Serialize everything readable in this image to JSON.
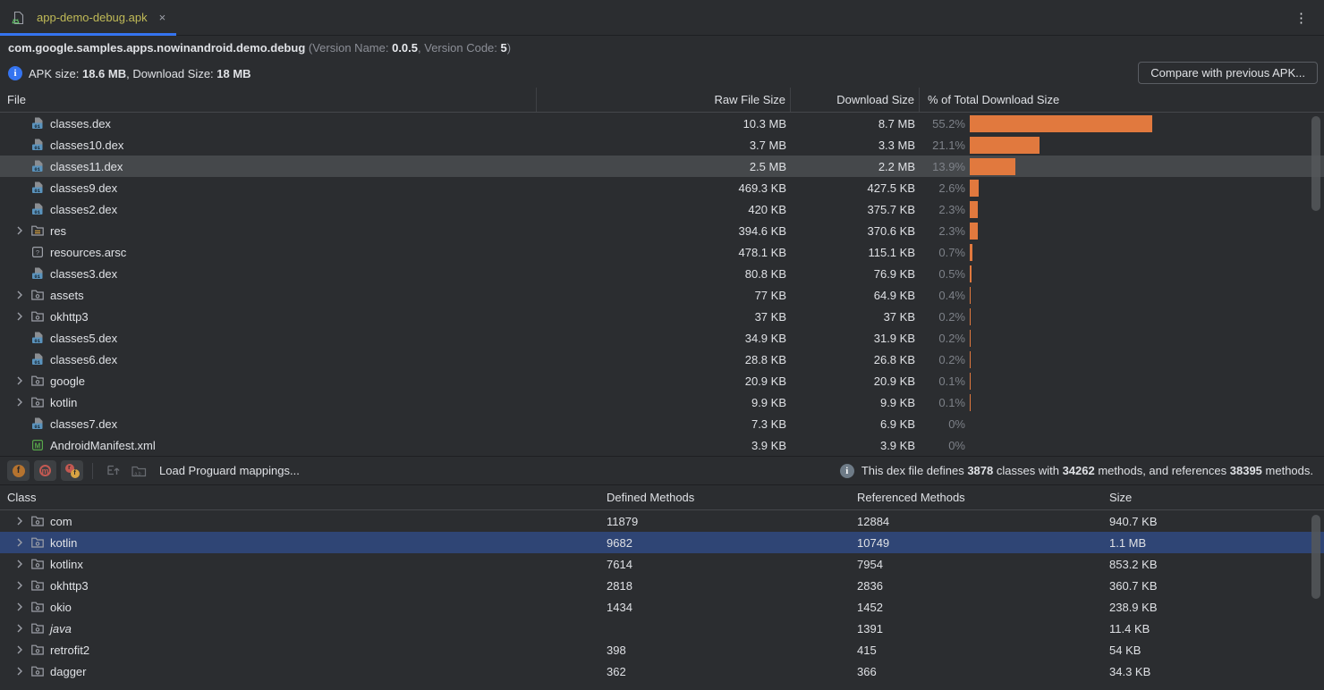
{
  "tab": {
    "label": "app-demo-debug.apk",
    "close_glyph": "×",
    "menu_glyph": "⋮"
  },
  "header": {
    "package": "com.google.samples.apps.nowinandroid.demo.debug",
    "version_open": " (Version Name: ",
    "version_name": "0.0.5",
    "version_mid": ", Version Code: ",
    "version_code": "5",
    "version_close": ")"
  },
  "apk_info": {
    "label_apk": "APK size: ",
    "apk_size": "18.6 MB",
    "label_download": ", Download Size: ",
    "download_size": "18 MB",
    "compare_button": "Compare with previous APK..."
  },
  "file_table": {
    "columns": {
      "file": "File",
      "raw": "Raw File Size",
      "download": "Download Size",
      "percent": "% of Total Download Size"
    },
    "bar_color": "#e1793e",
    "rows": [
      {
        "icon": "dex-file",
        "name": "classes.dex",
        "raw": "10.3 MB",
        "download": "8.7 MB",
        "percent": "55.2%",
        "percent_value": 55.2,
        "expandable": false,
        "selected": false
      },
      {
        "icon": "dex-file",
        "name": "classes10.dex",
        "raw": "3.7 MB",
        "download": "3.3 MB",
        "percent": "21.1%",
        "percent_value": 21.1,
        "expandable": false,
        "selected": false
      },
      {
        "icon": "dex-file",
        "name": "classes11.dex",
        "raw": "2.5 MB",
        "download": "2.2 MB",
        "percent": "13.9%",
        "percent_value": 13.9,
        "expandable": false,
        "selected": true
      },
      {
        "icon": "dex-file",
        "name": "classes9.dex",
        "raw": "469.3 KB",
        "download": "427.5 KB",
        "percent": "2.6%",
        "percent_value": 2.6,
        "expandable": false,
        "selected": false
      },
      {
        "icon": "dex-file",
        "name": "classes2.dex",
        "raw": "420 KB",
        "download": "375.7 KB",
        "percent": "2.3%",
        "percent_value": 2.3,
        "expandable": false,
        "selected": false
      },
      {
        "icon": "res-folder",
        "name": "res",
        "raw": "394.6 KB",
        "download": "370.6 KB",
        "percent": "2.3%",
        "percent_value": 2.3,
        "expandable": true,
        "selected": false
      },
      {
        "icon": "arsc-file",
        "name": "resources.arsc",
        "raw": "478.1 KB",
        "download": "115.1 KB",
        "percent": "0.7%",
        "percent_value": 0.7,
        "expandable": false,
        "selected": false
      },
      {
        "icon": "dex-file",
        "name": "classes3.dex",
        "raw": "80.8 KB",
        "download": "76.9 KB",
        "percent": "0.5%",
        "percent_value": 0.5,
        "expandable": false,
        "selected": false
      },
      {
        "icon": "package-folder",
        "name": "assets",
        "raw": "77 KB",
        "download": "64.9 KB",
        "percent": "0.4%",
        "percent_value": 0.4,
        "expandable": true,
        "selected": false
      },
      {
        "icon": "package-folder",
        "name": "okhttp3",
        "raw": "37 KB",
        "download": "37 KB",
        "percent": "0.2%",
        "percent_value": 0.2,
        "expandable": true,
        "selected": false
      },
      {
        "icon": "dex-file",
        "name": "classes5.dex",
        "raw": "34.9 KB",
        "download": "31.9 KB",
        "percent": "0.2%",
        "percent_value": 0.2,
        "expandable": false,
        "selected": false
      },
      {
        "icon": "dex-file",
        "name": "classes6.dex",
        "raw": "28.8 KB",
        "download": "26.8 KB",
        "percent": "0.2%",
        "percent_value": 0.2,
        "expandable": false,
        "selected": false
      },
      {
        "icon": "package-folder",
        "name": "google",
        "raw": "20.9 KB",
        "download": "20.9 KB",
        "percent": "0.1%",
        "percent_value": 0.1,
        "expandable": true,
        "selected": false
      },
      {
        "icon": "package-folder",
        "name": "kotlin",
        "raw": "9.9 KB",
        "download": "9.9 KB",
        "percent": "0.1%",
        "percent_value": 0.1,
        "expandable": true,
        "selected": false
      },
      {
        "icon": "dex-file",
        "name": "classes7.dex",
        "raw": "7.3 KB",
        "download": "6.9 KB",
        "percent": "0%",
        "percent_value": 0,
        "expandable": false,
        "selected": false
      },
      {
        "icon": "manifest-file",
        "name": "AndroidManifest.xml",
        "raw": "3.9 KB",
        "download": "3.9 KB",
        "percent": "0%",
        "percent_value": 0,
        "expandable": false,
        "selected": false
      }
    ]
  },
  "toolbar": {
    "buttons": [
      {
        "name": "toggle-fields",
        "glyph": "f"
      },
      {
        "name": "toggle-methods",
        "glyph": "m"
      },
      {
        "name": "toggle-referenced-nodes",
        "glyph_r": "r",
        "glyph_f": "f"
      }
    ],
    "load_mappings_label": "Load Proguard mappings...",
    "dex_info": {
      "prefix": "This dex file defines ",
      "classes": "3878",
      "mid1": " classes with ",
      "methods": "34262",
      "mid2": " methods, and references ",
      "references": "38395",
      "suffix": " methods."
    }
  },
  "class_table": {
    "columns": {
      "class": "Class",
      "defined": "Defined Methods",
      "referenced": "Referenced Methods",
      "size": "Size"
    },
    "rows": [
      {
        "name": "com",
        "defined": "11879",
        "referenced": "12884",
        "size": "940.7 KB",
        "selected": false,
        "italic": false
      },
      {
        "name": "kotlin",
        "defined": "9682",
        "referenced": "10749",
        "size": "1.1 MB",
        "selected": true,
        "italic": false
      },
      {
        "name": "kotlinx",
        "defined": "7614",
        "referenced": "7954",
        "size": "853.2 KB",
        "selected": false,
        "italic": false
      },
      {
        "name": "okhttp3",
        "defined": "2818",
        "referenced": "2836",
        "size": "360.7 KB",
        "selected": false,
        "italic": false
      },
      {
        "name": "okio",
        "defined": "1434",
        "referenced": "1452",
        "size": "238.9 KB",
        "selected": false,
        "italic": false
      },
      {
        "name": "java",
        "defined": "",
        "referenced": "1391",
        "size": "11.4 KB",
        "selected": false,
        "italic": true
      },
      {
        "name": "retrofit2",
        "defined": "398",
        "referenced": "415",
        "size": "54 KB",
        "selected": false,
        "italic": false
      },
      {
        "name": "dagger",
        "defined": "362",
        "referenced": "366",
        "size": "34.3 KB",
        "selected": false,
        "italic": false
      }
    ]
  }
}
